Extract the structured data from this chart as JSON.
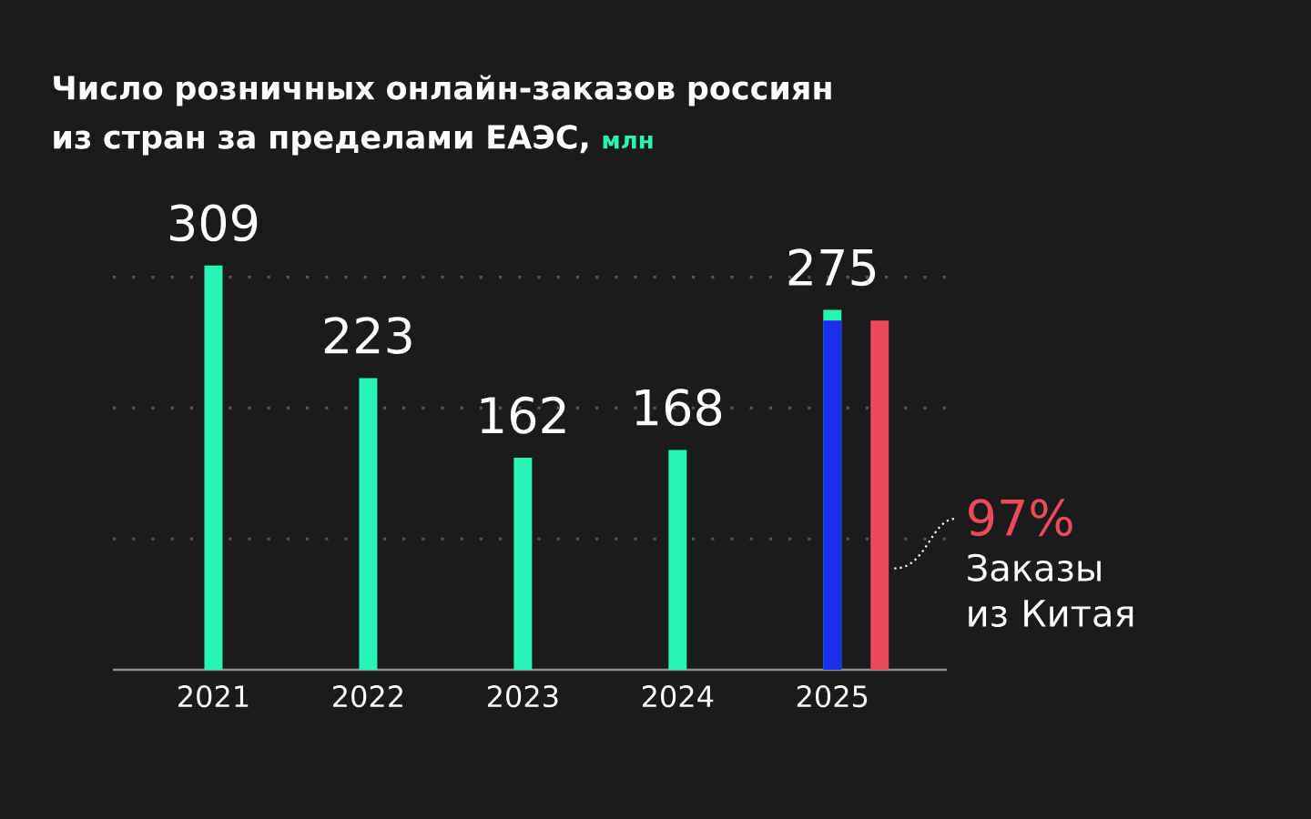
{
  "chart_data": {
    "type": "bar",
    "title": "Число розничных онлайн-заказов россиян из стран за пределами ЕАЭС,",
    "ylabel": "млн",
    "categories": [
      "2021",
      "2022",
      "2023",
      "2024",
      "2025"
    ],
    "series": [
      {
        "color": "#26f5b4",
        "values": [
          309,
          223,
          162,
          168,
          275
        ],
        "value_labels": [
          "309",
          "223",
          "162",
          "168",
          "275"
        ]
      },
      {
        "color": "#1b2eea",
        "values": [
          null,
          null,
          null,
          null,
          267
        ]
      },
      {
        "name": "Заказы из Китая",
        "color": "#ea4a5c",
        "values": [
          null,
          null,
          null,
          null,
          267
        ]
      }
    ],
    "annotations": [
      "97%"
    ],
    "yticks": [
      {
        "value": 100,
        "label": null
      },
      {
        "value": 200,
        "label": null
      },
      {
        "value": 300,
        "label": null
      }
    ],
    "grid": "y",
    "tick_labels": "x"
  }
}
